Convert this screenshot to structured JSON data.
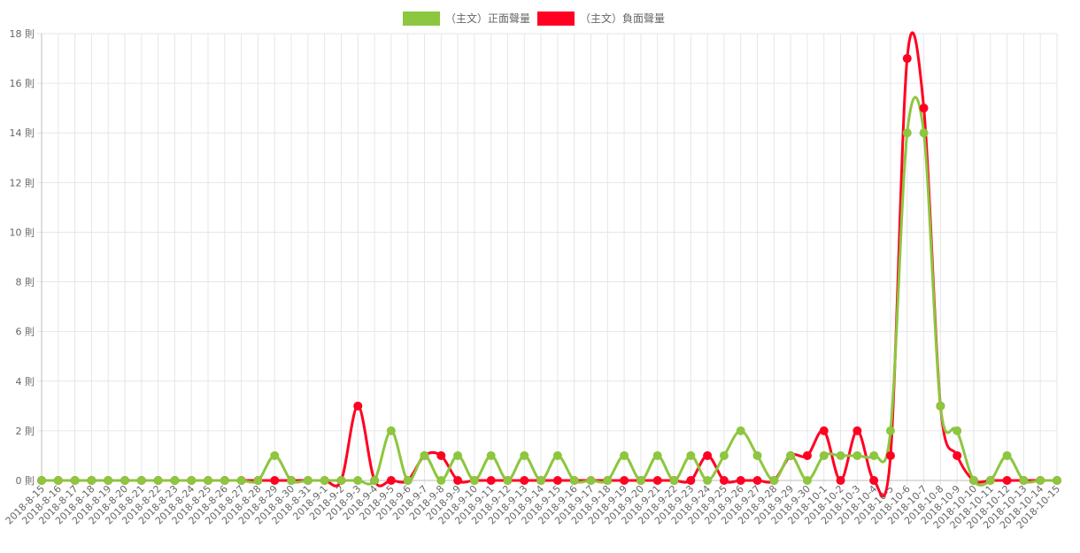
{
  "chart_data": {
    "type": "line",
    "x": [
      "2018-8-15",
      "2018-8-16",
      "2018-8-17",
      "2018-8-18",
      "2018-8-19",
      "2018-8-20",
      "2018-8-21",
      "2018-8-22",
      "2018-8-23",
      "2018-8-24",
      "2018-8-25",
      "2018-8-26",
      "2018-8-27",
      "2018-8-28",
      "2018-8-29",
      "2018-8-30",
      "2018-8-31",
      "2018-9-1",
      "2018-9-2",
      "2018-9-3",
      "2018-9-4",
      "2018-9-5",
      "2018-9-6",
      "2018-9-7",
      "2018-9-8",
      "2018-9-9",
      "2018-9-10",
      "2018-9-11",
      "2018-9-12",
      "2018-9-13",
      "2018-9-14",
      "2018-9-15",
      "2018-9-16",
      "2018-9-17",
      "2018-9-18",
      "2018-9-19",
      "2018-9-20",
      "2018-9-21",
      "2018-9-22",
      "2018-9-23",
      "2018-9-24",
      "2018-9-25",
      "2018-9-26",
      "2018-9-27",
      "2018-9-28",
      "2018-9-29",
      "2018-9-30",
      "2018-10-1",
      "2018-10-2",
      "2018-10-3",
      "2018-10-4",
      "2018-10-5",
      "2018-10-6",
      "2018-10-7",
      "2018-10-8",
      "2018-10-9",
      "2018-10-10",
      "2018-10-11",
      "2018-10-12",
      "2018-10-13",
      "2018-10-14",
      "2018-10-15"
    ],
    "series": [
      {
        "name": "（主文）正面聲量",
        "color": "#8dc63f",
        "values": [
          0,
          0,
          0,
          0,
          0,
          0,
          0,
          0,
          0,
          0,
          0,
          0,
          0,
          0,
          1,
          0,
          0,
          0,
          0,
          0,
          0,
          2,
          0,
          1,
          0,
          1,
          0,
          1,
          0,
          1,
          0,
          1,
          0,
          0,
          0,
          1,
          0,
          1,
          0,
          1,
          0,
          1,
          2,
          1,
          0,
          1,
          0,
          1,
          1,
          1,
          1,
          2,
          14,
          14,
          3,
          2,
          0,
          0,
          1,
          0,
          0,
          0
        ]
      },
      {
        "name": "（主文）負面聲量",
        "color": "#ff0022",
        "values": [
          0,
          0,
          0,
          0,
          0,
          0,
          0,
          0,
          0,
          0,
          0,
          0,
          0,
          0,
          0,
          0,
          0,
          0,
          0,
          3,
          0,
          0,
          0,
          1,
          1,
          0,
          0,
          0,
          0,
          0,
          0,
          0,
          0,
          0,
          0,
          0,
          0,
          0,
          0,
          0,
          1,
          0,
          0,
          0,
          0,
          1,
          1,
          2,
          0,
          2,
          0,
          1,
          17,
          15,
          3,
          1,
          0,
          0,
          0,
          0,
          0,
          0
        ]
      }
    ],
    "y_ticks": [
      "0 則",
      "2 則",
      "4 則",
      "6 則",
      "8 則",
      "10 則",
      "12 則",
      "14 則",
      "16 則",
      "18 則"
    ],
    "ylim": [
      0,
      18
    ],
    "grid": true,
    "legend": "top-center"
  }
}
